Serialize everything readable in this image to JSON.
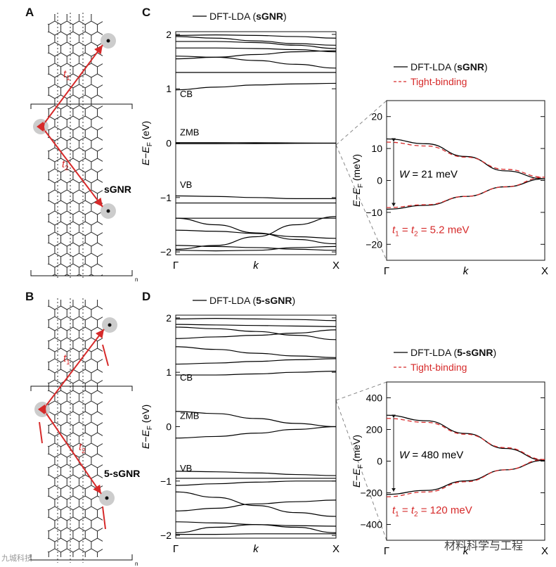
{
  "panels": {
    "A": "A",
    "B": "B",
    "C": "C",
    "D": "D"
  },
  "molecules": {
    "A": {
      "name": "sGNR",
      "t1": "t",
      "t1_sub": "1",
      "t2": "t",
      "t2_sub": "2",
      "repeat_index": "n"
    },
    "B": {
      "name": "5-sGNR",
      "t1": "t",
      "t1_sub": "1",
      "t2": "t",
      "t2_sub": "2",
      "repeat_index": "n"
    }
  },
  "watermark": {
    "right": "材料科学与工程",
    "left": "九城科技"
  },
  "colors": {
    "dft": "#000000",
    "tight_binding": "#d62a2a",
    "arrow": "#d62a2a",
    "site_dot": "#cccccc"
  },
  "chart_data": [
    {
      "id": "C-left",
      "type": "line",
      "legend": [
        {
          "prefix": "DFT-LDA (",
          "bold": "sGNR",
          "suffix": ")"
        }
      ],
      "ylabel": "E−E",
      "ylabel_sub": "F",
      "ylabel_unit": " (eV)",
      "ylim": [
        -2.05,
        2.05
      ],
      "yticks": [
        "2",
        "1",
        "0",
        "−1",
        "−2"
      ],
      "ytick_values": [
        2,
        1,
        0,
        -1,
        -2
      ],
      "xticks": [
        "Γ",
        "k",
        "X"
      ],
      "band_labels": [
        {
          "text": "CB",
          "y": 0.85
        },
        {
          "text": "ZMB",
          "y": 0.14
        },
        {
          "text": "VB",
          "y": -0.82
        }
      ],
      "bands": [
        [
          1.98,
          1.99,
          1.98,
          1.96,
          1.93
        ],
        [
          1.96,
          1.93,
          1.88,
          1.83,
          1.8
        ],
        [
          1.87,
          1.87,
          1.85,
          1.8,
          1.74
        ],
        [
          1.75,
          1.75,
          1.74,
          1.72,
          1.68
        ],
        [
          1.6,
          1.58,
          1.52,
          1.45,
          1.38
        ],
        [
          1.55,
          1.58,
          1.63,
          1.68,
          1.7
        ],
        [
          1.3,
          1.3,
          1.3,
          1.3,
          1.3
        ],
        [
          0.98,
          1.03,
          1.07,
          1.09,
          1.1
        ],
        [
          0.01,
          0.01,
          0.008,
          0.004,
          0.0
        ],
        [
          -0.01,
          -0.01,
          -0.008,
          -0.004,
          0.0
        ],
        [
          -0.97,
          -0.98,
          -1.0,
          -1.02,
          -1.02
        ],
        [
          -1.1,
          -1.1,
          -1.1,
          -1.1,
          -1.1
        ],
        [
          -1.38,
          -1.38,
          -1.38,
          -1.38,
          -1.38
        ],
        [
          -1.6,
          -1.62,
          -1.66,
          -1.72,
          -1.75
        ],
        [
          -1.38,
          -1.5,
          -1.65,
          -1.77,
          -1.85
        ],
        [
          -1.88,
          -1.9,
          -1.92,
          -1.95,
          -1.97
        ],
        [
          -1.95,
          -1.88,
          -1.72,
          -1.5,
          -1.35
        ],
        [
          -1.97,
          -1.98,
          -1.97,
          -1.92,
          -1.9
        ]
      ]
    },
    {
      "id": "C-right",
      "type": "line",
      "legend": [
        {
          "prefix": "DFT-LDA (",
          "bold": "sGNR",
          "suffix": ")"
        },
        {
          "prefix": "Tight-binding",
          "bold": "",
          "suffix": ""
        }
      ],
      "ylabel": "E−E",
      "ylabel_sub": "F",
      "ylabel_unit": " (meV)",
      "ylim": [
        -25,
        25
      ],
      "yticks": [
        "20",
        "10",
        "0",
        "−10",
        "−20"
      ],
      "ytick_values": [
        20,
        10,
        0,
        -10,
        -20
      ],
      "xticks": [
        "Γ",
        "k",
        "X"
      ],
      "series": [
        {
          "name": "DFT-LDA (sGNR)",
          "y": [
            13,
            11.5,
            7.5,
            3,
            0.5
          ],
          "y2": [
            -9,
            -7.8,
            -5,
            -2,
            0.5
          ]
        },
        {
          "name": "Tight-binding",
          "y": [
            12,
            10.8,
            7.3,
            3.5,
            1
          ],
          "y2": [
            -8.5,
            -7.6,
            -5,
            -2,
            1
          ]
        }
      ],
      "annotations": [
        {
          "text": "W = 21 meV"
        },
        {
          "text": "t",
          "sub": "1",
          "mid": " = t",
          "sub2": "2",
          "tail": " = 5.2 meV"
        }
      ]
    },
    {
      "id": "D-left",
      "type": "line",
      "legend": [
        {
          "prefix": "DFT-LDA (",
          "bold": "5-sGNR",
          "suffix": ")"
        }
      ],
      "ylabel": "E−E",
      "ylabel_sub": "F",
      "ylabel_unit": " (eV)",
      "ylim": [
        -2.05,
        2.05
      ],
      "yticks": [
        "2",
        "1",
        "0",
        "−1",
        "−2"
      ],
      "ytick_values": [
        2,
        1,
        0,
        -1,
        -2
      ],
      "xticks": [
        "Γ",
        "k",
        "X"
      ],
      "band_labels": [
        {
          "text": "CB",
          "y": 0.85
        },
        {
          "text": "ZMB",
          "y": 0.14
        },
        {
          "text": "VB",
          "y": -0.82
        }
      ],
      "bands": [
        [
          1.98,
          1.99,
          1.98,
          1.97,
          1.95
        ],
        [
          1.88,
          1.87,
          1.86,
          1.85,
          1.84
        ],
        [
          1.83,
          1.8,
          1.75,
          1.68,
          1.6
        ],
        [
          1.62,
          1.65,
          1.68,
          1.72,
          1.78
        ],
        [
          1.47,
          1.42,
          1.35,
          1.3,
          1.27
        ],
        [
          1.15,
          1.17,
          1.2,
          1.23,
          1.25
        ],
        [
          0.95,
          0.95,
          0.97,
          1.0,
          1.02
        ],
        [
          0.28,
          0.24,
          0.15,
          0.06,
          0.0
        ],
        [
          -0.21,
          -0.18,
          -0.12,
          -0.05,
          0.0
        ],
        [
          -0.82,
          -0.83,
          -0.85,
          -0.88,
          -0.9
        ],
        [
          -0.95,
          -0.95,
          -0.95,
          -0.95,
          -0.95
        ],
        [
          -1.08,
          -1.05,
          -1.02,
          -1.0,
          -1.0
        ],
        [
          -1.2,
          -1.3,
          -1.45,
          -1.58,
          -1.65
        ],
        [
          -1.55,
          -1.5,
          -1.42,
          -1.38,
          -1.35
        ],
        [
          -1.75,
          -1.77,
          -1.8,
          -1.82,
          -1.83
        ],
        [
          -1.95,
          -1.85,
          -1.8,
          -1.85,
          -1.95
        ],
        [
          -1.98,
          -1.98,
          -1.97,
          -1.97,
          -1.97
        ]
      ]
    },
    {
      "id": "D-right",
      "type": "line",
      "legend": [
        {
          "prefix": "DFT-LDA (",
          "bold": "5-sGNR",
          "suffix": ")"
        },
        {
          "prefix": "Tight-binding",
          "bold": "",
          "suffix": ""
        }
      ],
      "ylabel": "E−E",
      "ylabel_sub": "F",
      "ylabel_unit": " (meV)",
      "ylim": [
        -500,
        500
      ],
      "yticks": [
        "400",
        "200",
        "0",
        "−200",
        "−400"
      ],
      "ytick_values": [
        400,
        200,
        0,
        -200,
        -400
      ],
      "xticks": [
        "Γ",
        "k",
        "X"
      ],
      "series": [
        {
          "name": "DFT-LDA (5-sGNR)",
          "y": [
            290,
            255,
            175,
            80,
            5
          ],
          "y2": [
            -210,
            -185,
            -125,
            -55,
            5
          ]
        },
        {
          "name": "Tight-binding",
          "y": [
            270,
            245,
            170,
            85,
            10
          ],
          "y2": [
            -225,
            -195,
            -130,
            -55,
            10
          ]
        }
      ],
      "annotations": [
        {
          "text": "W = 480 meV"
        },
        {
          "text": "t",
          "sub": "1",
          "mid": " = t",
          "sub2": "2",
          "tail": " = 120 meV"
        }
      ]
    }
  ]
}
